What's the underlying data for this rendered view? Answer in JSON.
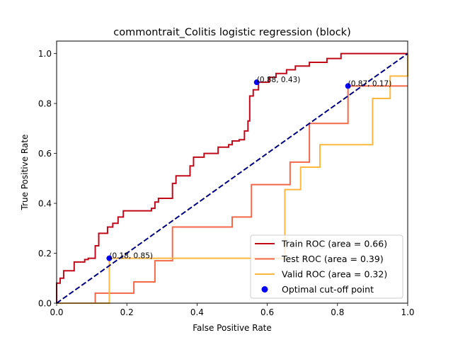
{
  "chart_data": {
    "type": "line",
    "title": "commontrait_Colitis logistic regression (block)",
    "xlabel": "False Positive Rate",
    "ylabel": "True Positive Rate",
    "xlim": [
      0,
      1
    ],
    "ylim": [
      0,
      1.05
    ],
    "x_ticks": [
      "0.0",
      "0.2",
      "0.4",
      "0.6",
      "0.8",
      "1.0"
    ],
    "y_ticks": [
      "0.0",
      "0.2",
      "0.4",
      "0.6",
      "0.8",
      "1.0"
    ],
    "grid": false,
    "legend_position": "lower-right",
    "series": [
      {
        "name": "Train ROC (area = 0.66)",
        "color": "#c0091a",
        "step_points": [
          [
            0.0,
            0.0
          ],
          [
            0.0,
            0.08
          ],
          [
            0.01,
            0.08
          ],
          [
            0.01,
            0.1
          ],
          [
            0.02,
            0.1
          ],
          [
            0.02,
            0.13
          ],
          [
            0.05,
            0.13
          ],
          [
            0.05,
            0.165
          ],
          [
            0.08,
            0.165
          ],
          [
            0.08,
            0.175
          ],
          [
            0.09,
            0.175
          ],
          [
            0.09,
            0.18
          ],
          [
            0.11,
            0.18
          ],
          [
            0.11,
            0.23
          ],
          [
            0.12,
            0.23
          ],
          [
            0.12,
            0.28
          ],
          [
            0.145,
            0.28
          ],
          [
            0.145,
            0.305
          ],
          [
            0.16,
            0.305
          ],
          [
            0.16,
            0.32
          ],
          [
            0.175,
            0.32
          ],
          [
            0.175,
            0.345
          ],
          [
            0.19,
            0.345
          ],
          [
            0.19,
            0.37
          ],
          [
            0.27,
            0.37
          ],
          [
            0.27,
            0.38
          ],
          [
            0.28,
            0.38
          ],
          [
            0.28,
            0.405
          ],
          [
            0.29,
            0.405
          ],
          [
            0.29,
            0.42
          ],
          [
            0.33,
            0.42
          ],
          [
            0.33,
            0.48
          ],
          [
            0.34,
            0.48
          ],
          [
            0.34,
            0.51
          ],
          [
            0.38,
            0.51
          ],
          [
            0.38,
            0.55
          ],
          [
            0.39,
            0.55
          ],
          [
            0.39,
            0.585
          ],
          [
            0.42,
            0.585
          ],
          [
            0.42,
            0.6
          ],
          [
            0.46,
            0.6
          ],
          [
            0.46,
            0.625
          ],
          [
            0.49,
            0.625
          ],
          [
            0.49,
            0.635
          ],
          [
            0.5,
            0.635
          ],
          [
            0.5,
            0.65
          ],
          [
            0.52,
            0.65
          ],
          [
            0.52,
            0.655
          ],
          [
            0.535,
            0.655
          ],
          [
            0.535,
            0.69
          ],
          [
            0.545,
            0.69
          ],
          [
            0.545,
            0.73
          ],
          [
            0.55,
            0.73
          ],
          [
            0.55,
            0.83
          ],
          [
            0.56,
            0.83
          ],
          [
            0.56,
            0.855
          ],
          [
            0.575,
            0.855
          ],
          [
            0.575,
            0.885
          ],
          [
            0.605,
            0.885
          ],
          [
            0.605,
            0.905
          ],
          [
            0.625,
            0.905
          ],
          [
            0.625,
            0.92
          ],
          [
            0.655,
            0.92
          ],
          [
            0.655,
            0.935
          ],
          [
            0.68,
            0.935
          ],
          [
            0.68,
            0.95
          ],
          [
            0.72,
            0.95
          ],
          [
            0.72,
            0.965
          ],
          [
            0.77,
            0.965
          ],
          [
            0.77,
            0.98
          ],
          [
            0.81,
            0.98
          ],
          [
            0.81,
            0.985
          ],
          [
            0.81,
            1.0
          ],
          [
            1.0,
            1.0
          ]
        ]
      },
      {
        "name": "Test ROC (area = 0.39)",
        "color": "#f56749",
        "step_points": [
          [
            0.0,
            0.0
          ],
          [
            0.11,
            0.0
          ],
          [
            0.11,
            0.04
          ],
          [
            0.22,
            0.04
          ],
          [
            0.22,
            0.085
          ],
          [
            0.28,
            0.085
          ],
          [
            0.28,
            0.17
          ],
          [
            0.33,
            0.17
          ],
          [
            0.33,
            0.305
          ],
          [
            0.5,
            0.305
          ],
          [
            0.5,
            0.345
          ],
          [
            0.555,
            0.345
          ],
          [
            0.555,
            0.475
          ],
          [
            0.665,
            0.475
          ],
          [
            0.665,
            0.565
          ],
          [
            0.72,
            0.565
          ],
          [
            0.72,
            0.72
          ],
          [
            0.83,
            0.72
          ],
          [
            0.83,
            0.87
          ],
          [
            1.0,
            0.87
          ]
        ]
      },
      {
        "name": "Valid ROC (area = 0.32)",
        "color": "#feb840",
        "step_points": [
          [
            0.0,
            0.0
          ],
          [
            0.15,
            0.0
          ],
          [
            0.15,
            0.18
          ],
          [
            0.65,
            0.18
          ],
          [
            0.65,
            0.455
          ],
          [
            0.695,
            0.455
          ],
          [
            0.695,
            0.545
          ],
          [
            0.75,
            0.545
          ],
          [
            0.75,
            0.635
          ],
          [
            0.9,
            0.635
          ],
          [
            0.9,
            0.82
          ],
          [
            0.95,
            0.82
          ],
          [
            0.95,
            0.91
          ],
          [
            1.0,
            0.91
          ],
          [
            1.0,
            1.0
          ]
        ]
      }
    ],
    "reference_line": {
      "color": "#000080",
      "dash": true,
      "points": [
        [
          0,
          0
        ],
        [
          1,
          1
        ]
      ]
    },
    "optimal_points": {
      "name": "Optimal cut-off point",
      "color": "#0000ff",
      "points": [
        {
          "x": 0.57,
          "y": 0.885,
          "label": "(0.88, 0.43)"
        },
        {
          "x": 0.83,
          "y": 0.87,
          "label": "(0.87, 0.17)"
        },
        {
          "x": 0.15,
          "y": 0.18,
          "label": "(0.18, 0.85)"
        }
      ]
    }
  }
}
